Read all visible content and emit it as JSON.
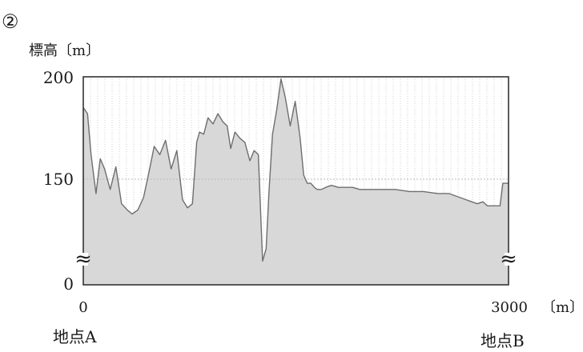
{
  "figure_number": "②",
  "chart_data": {
    "type": "area",
    "ylabel": "標高〔m〕",
    "xlabel_unit": "〔m〕",
    "xlim": [
      0,
      3000
    ],
    "yticks": [
      "200",
      "150",
      "0"
    ],
    "xticks": [
      "0",
      "3000"
    ],
    "axis_break_symbol": "≈",
    "y_axis_broken": true,
    "grid_x": true,
    "reference_line_y": 150,
    "start_label": "地点A",
    "end_label": "地点B",
    "colors": {
      "fill": "#d8d8d8",
      "line": "#6e6e6e",
      "frame": "#333333",
      "grid": "#b4b4b4"
    },
    "profile": {
      "x": [
        0,
        30,
        55,
        90,
        120,
        150,
        190,
        230,
        270,
        310,
        345,
        385,
        425,
        465,
        500,
        540,
        580,
        620,
        660,
        700,
        735,
        770,
        800,
        820,
        850,
        880,
        915,
        950,
        985,
        1015,
        1040,
        1070,
        1105,
        1140,
        1175,
        1205,
        1235,
        1265,
        1290,
        1310,
        1335,
        1365,
        1395,
        1425,
        1460,
        1495,
        1530,
        1555,
        1580,
        1605,
        1630,
        1650,
        1680,
        1710,
        1750,
        1800,
        1850,
        1900,
        1950,
        2000,
        2100,
        2200,
        2300,
        2400,
        2500,
        2580,
        2620,
        2660,
        2700,
        2740,
        2780,
        2820,
        2850,
        2880,
        2910,
        2940,
        2960,
        3000
      ],
      "y": [
        185,
        182,
        162,
        143,
        160,
        155,
        145,
        156,
        138,
        135,
        133,
        135,
        141,
        154,
        166,
        162,
        169,
        155,
        164,
        140,
        136,
        138,
        168,
        173,
        172,
        180,
        177,
        182,
        178,
        176,
        165,
        173,
        170,
        168,
        159,
        164,
        162,
        110,
        116,
        144,
        172,
        184,
        199,
        190,
        176,
        188,
        170,
        152,
        148,
        148,
        146,
        145,
        145,
        146,
        147,
        146,
        146,
        146,
        145,
        145,
        145,
        145,
        144,
        144,
        143,
        143,
        142,
        141,
        140,
        139,
        138,
        139,
        137,
        137,
        137,
        137,
        148,
        148
      ]
    }
  }
}
